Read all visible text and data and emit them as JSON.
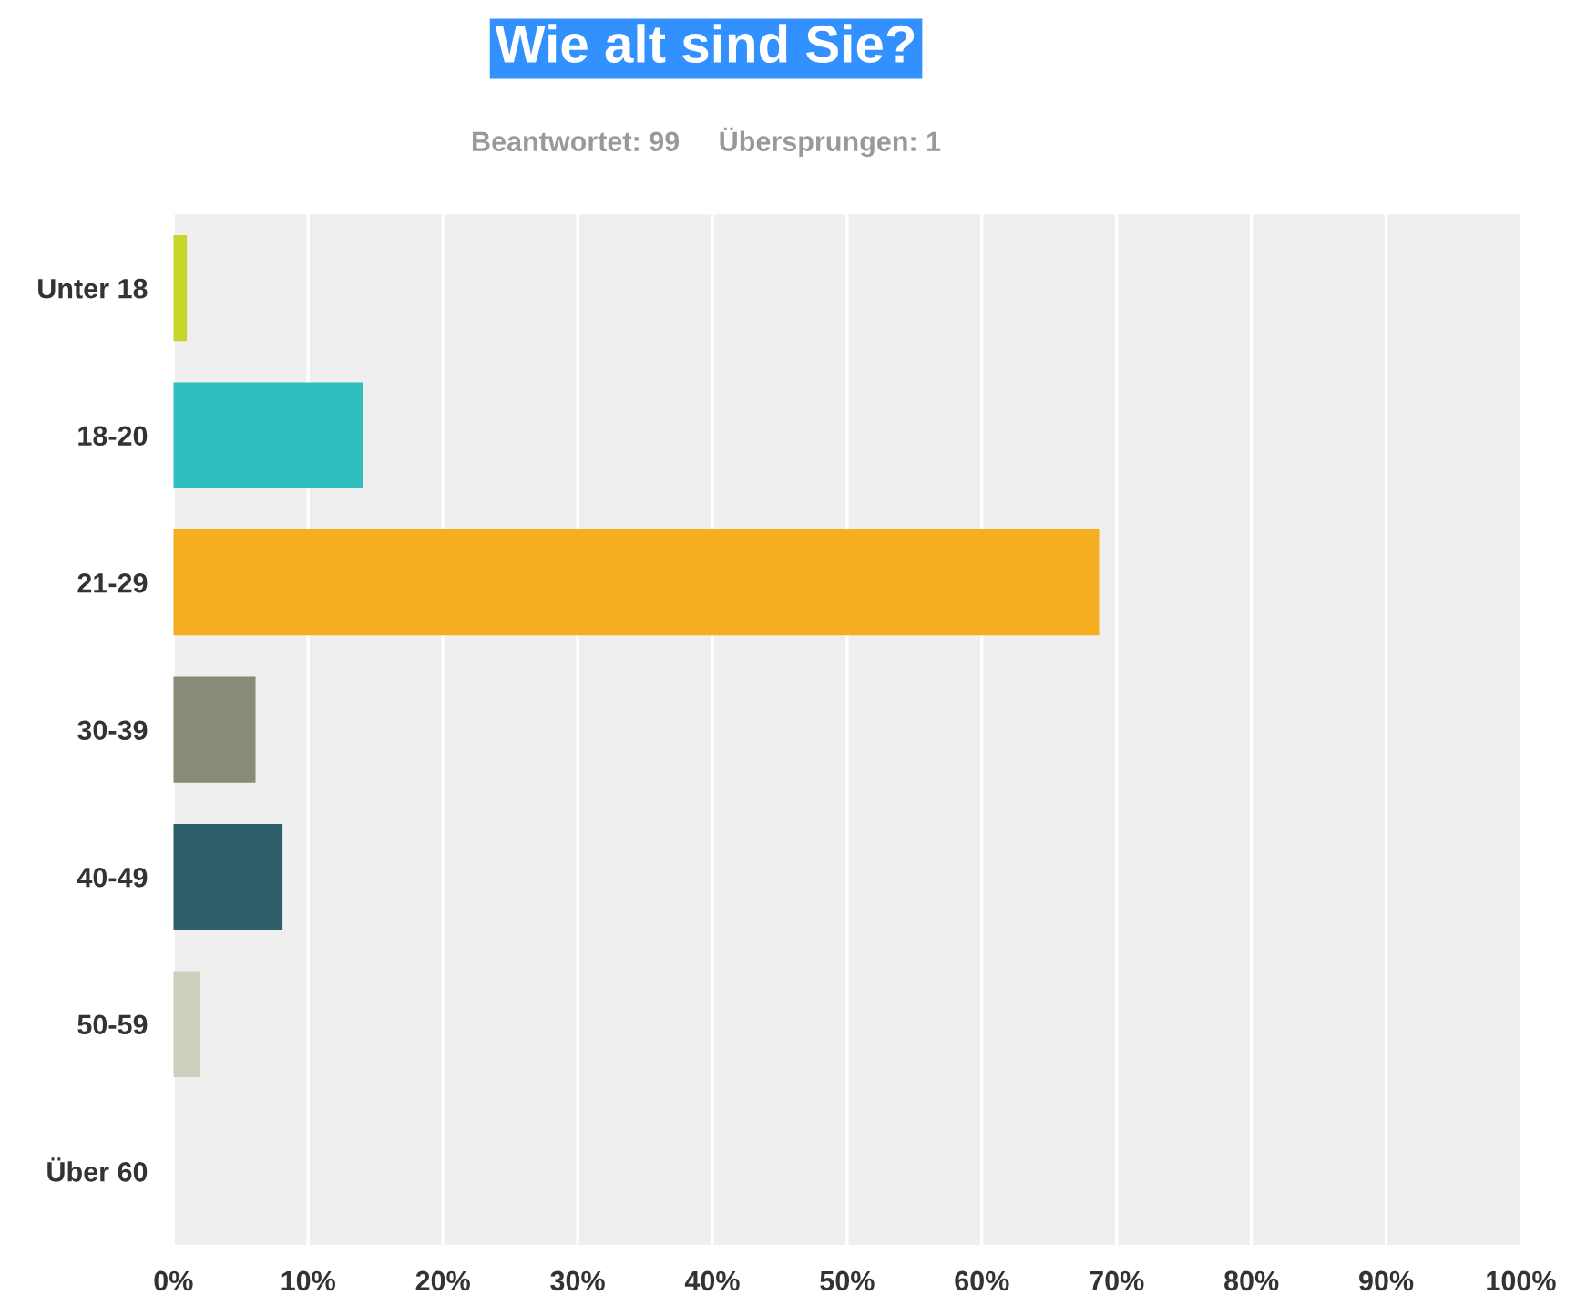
{
  "chart_data": {
    "type": "bar",
    "orientation": "horizontal",
    "title": "Wie alt sind Sie?",
    "subtitle": "Beantwortet: 99     Übersprungen: 1",
    "categories": [
      "Unter 18",
      "18-20",
      "21-29",
      "30-39",
      "40-49",
      "50-59",
      "Über 60"
    ],
    "values": [
      1,
      14.1,
      68.7,
      6.1,
      8.1,
      2,
      0
    ],
    "colors": [
      "#c8d62b",
      "#2fbfbf",
      "#f5ae1f",
      "#8a8a78",
      "#2e5e6a",
      "#cfcfbf",
      "#e0e0e0"
    ],
    "xlim": [
      0,
      100
    ],
    "xticks": [
      {
        "value": 0,
        "label": "0%"
      },
      {
        "value": 10,
        "label": "10%"
      },
      {
        "value": 20,
        "label": "20%"
      },
      {
        "value": 30,
        "label": "30%"
      },
      {
        "value": 40,
        "label": "40%"
      },
      {
        "value": 50,
        "label": "50%"
      },
      {
        "value": 60,
        "label": "60%"
      },
      {
        "value": 70,
        "label": "70%"
      },
      {
        "value": 80,
        "label": "80%"
      },
      {
        "value": 90,
        "label": "90%"
      },
      {
        "value": 100,
        "label": "100%"
      }
    ],
    "grid": "x",
    "legend": false
  }
}
